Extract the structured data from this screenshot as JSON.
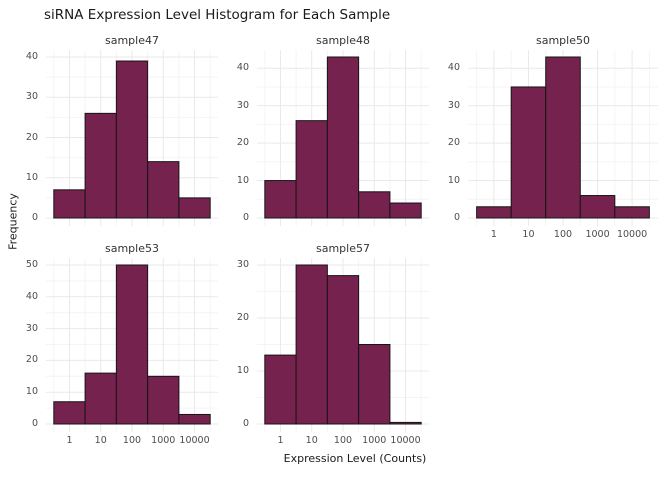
{
  "title": "siRNA Expression Level Histogram for Each Sample",
  "xlabel": "Expression Level (Counts)",
  "ylabel": "Frequency",
  "chart_data": {
    "type": "bar",
    "subtype": "faceted-histogram-log-x",
    "x_ticks": [
      "1",
      "10",
      "100",
      "1000",
      "10000"
    ],
    "bar_color": "#76224e",
    "bar_border": "#151515",
    "grid_major": "#e9e9e9",
    "grid_minor": "#f4f4f4",
    "facets": [
      {
        "name": "sample47",
        "values": [
          7,
          26,
          39,
          14,
          5
        ],
        "y_ticks": [
          0,
          10,
          20,
          30,
          40
        ]
      },
      {
        "name": "sample48",
        "values": [
          10,
          26,
          43,
          7,
          4
        ],
        "y_ticks": [
          0,
          10,
          20,
          30,
          40
        ]
      },
      {
        "name": "sample50",
        "values": [
          3,
          35,
          43,
          6,
          3
        ],
        "y_ticks": [
          0,
          10,
          20,
          30,
          40
        ]
      },
      {
        "name": "sample53",
        "values": [
          7,
          16,
          50,
          15,
          3
        ],
        "y_ticks": [
          0,
          10,
          20,
          30,
          40,
          50
        ]
      },
      {
        "name": "sample57",
        "values": [
          13,
          30,
          28,
          15,
          0.3
        ],
        "y_ticks": [
          0,
          10,
          20,
          30
        ]
      }
    ]
  }
}
